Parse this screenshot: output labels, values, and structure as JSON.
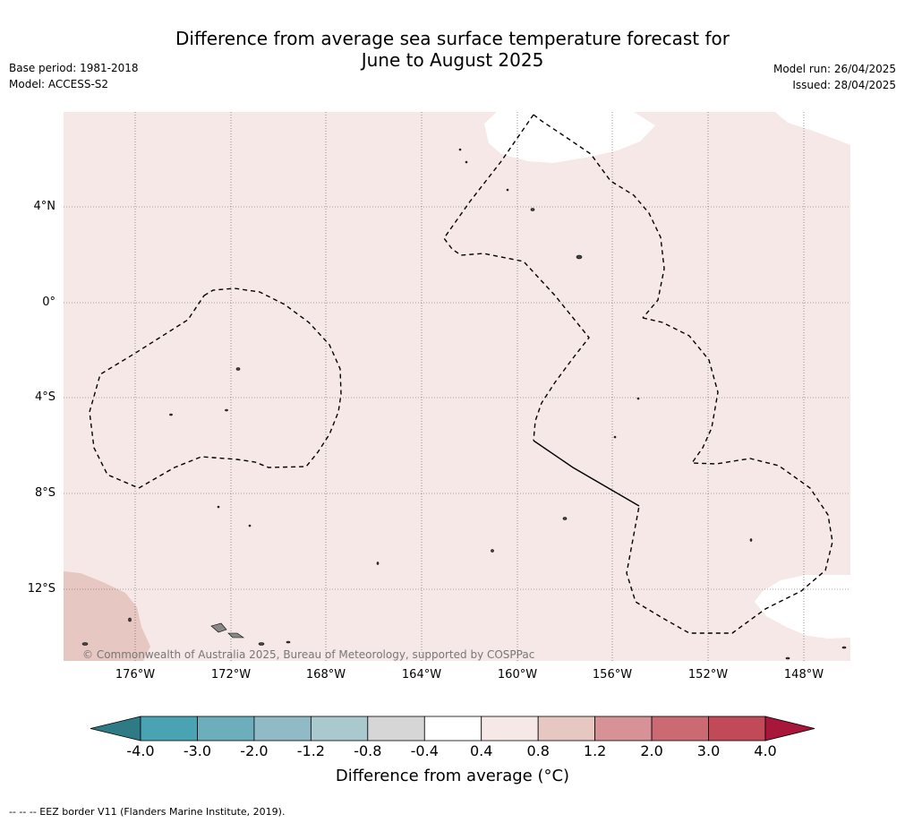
{
  "title_line1": "Difference from average sea surface temperature forecast for",
  "title_line2": "June to August 2025",
  "base_period": "Base period: 1981-2018",
  "model": "Model: ACCESS-S2",
  "model_run": "Model run: 26/04/2025",
  "issued": "Issued: 28/04/2025",
  "lat_labels": [
    "4°N",
    "0°",
    "4°S",
    "8°S",
    "12°S"
  ],
  "lon_labels": [
    "176°W",
    "172°W",
    "168°W",
    "164°W",
    "160°W",
    "156°W",
    "152°W",
    "148°W"
  ],
  "copyright": "© Commonwealth of Australia 2025, Bureau of Meteorology, supported by COSPPac",
  "colorbar": {
    "ticks": [
      "-4.0",
      "-3.0",
      "-2.0",
      "-1.2",
      "-0.8",
      "-0.4",
      "0.4",
      "0.8",
      "1.2",
      "2.0",
      "3.0",
      "4.0"
    ],
    "colors": [
      "#2e7b86",
      "#4aa3b3",
      "#6daebd",
      "#8fbac6",
      "#a9c9cf",
      "#d6d6d6",
      "#ffffff",
      "#f5e8e6",
      "#e7c7c2",
      "#d79297",
      "#cc6a74",
      "#c04a58",
      "#a8173a"
    ],
    "title": "Difference from average (°C)"
  },
  "footer": "--  --  -- EEZ border V11 (Flanders Marine Institute, 2019)."
}
